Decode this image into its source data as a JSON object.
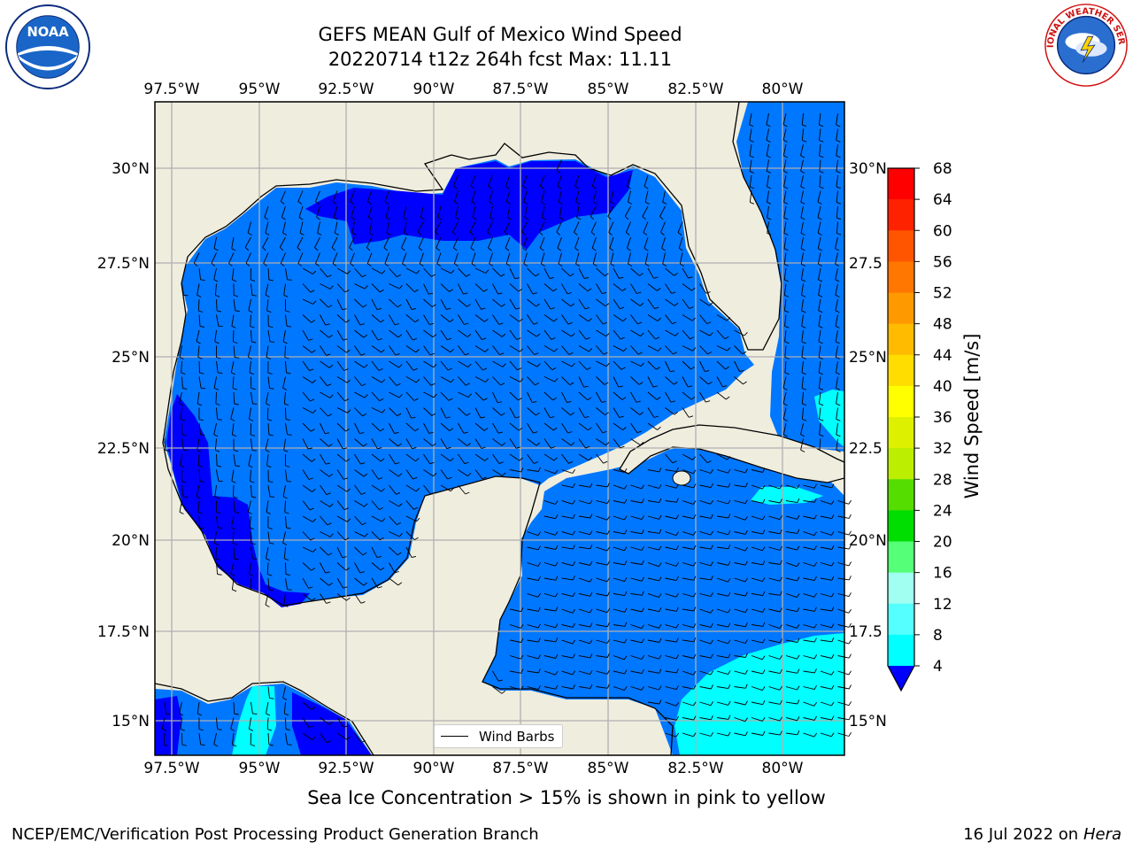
{
  "title_line1": "GEFS MEAN Gulf of Mexico Wind Speed",
  "title_line2": "20220714 t12z 264h fcst   Max: 11.11",
  "lon_ticks": [
    "97.5°W",
    "95°W",
    "92.5°W",
    "90°W",
    "87.5°W",
    "85°W",
    "82.5°W",
    "80°W"
  ],
  "lat_ticks": [
    "30°N",
    "27.5°N",
    "25°N",
    "22.5°N",
    "20°N",
    "17.5°N",
    "15°N"
  ],
  "lat_ticks_right": [
    "30°N",
    "27.5",
    "25°N",
    "22.5",
    "20°N",
    "17.5",
    "15°N"
  ],
  "colorbar": {
    "label": "Wind Speed [m/s]",
    "ticks": [
      "68",
      "64",
      "60",
      "56",
      "52",
      "48",
      "44",
      "40",
      "36",
      "32",
      "28",
      "24",
      "20",
      "16",
      "12",
      "8",
      "4"
    ],
    "colors": [
      "#ff0000",
      "#ff2200",
      "#ff5500",
      "#ff7700",
      "#ff9900",
      "#ffbb00",
      "#ffdd00",
      "#ffff00",
      "#ddf000",
      "#bbee00",
      "#55dd00",
      "#00dd00",
      "#55ff77",
      "#a0fff0",
      "#55ffff",
      "#00ffff",
      "#0077ff"
    ],
    "extend_color": "#0000ff"
  },
  "legend_label": "Wind Barbs",
  "caption": "Sea Ice Concentration > 15% is shown in pink to yellow",
  "footer_left": "NCEP/EMC/Verification Post Processing Product Generation Branch",
  "footer_right_prefix": "16 Jul 2022 on ",
  "footer_right_host": "Hera",
  "logos": {
    "left": "noaa-logo",
    "right": "nws-logo",
    "left_text": "NOAA",
    "right_text": "NATIONAL WEATHER SERVICE"
  },
  "map_colors": {
    "land": "#efedde",
    "ocean_4_8": "#0077ff",
    "ocean_0_4": "#0000ff",
    "ocean_8_12": "#00ffff",
    "grid": "#b0b0b0"
  }
}
